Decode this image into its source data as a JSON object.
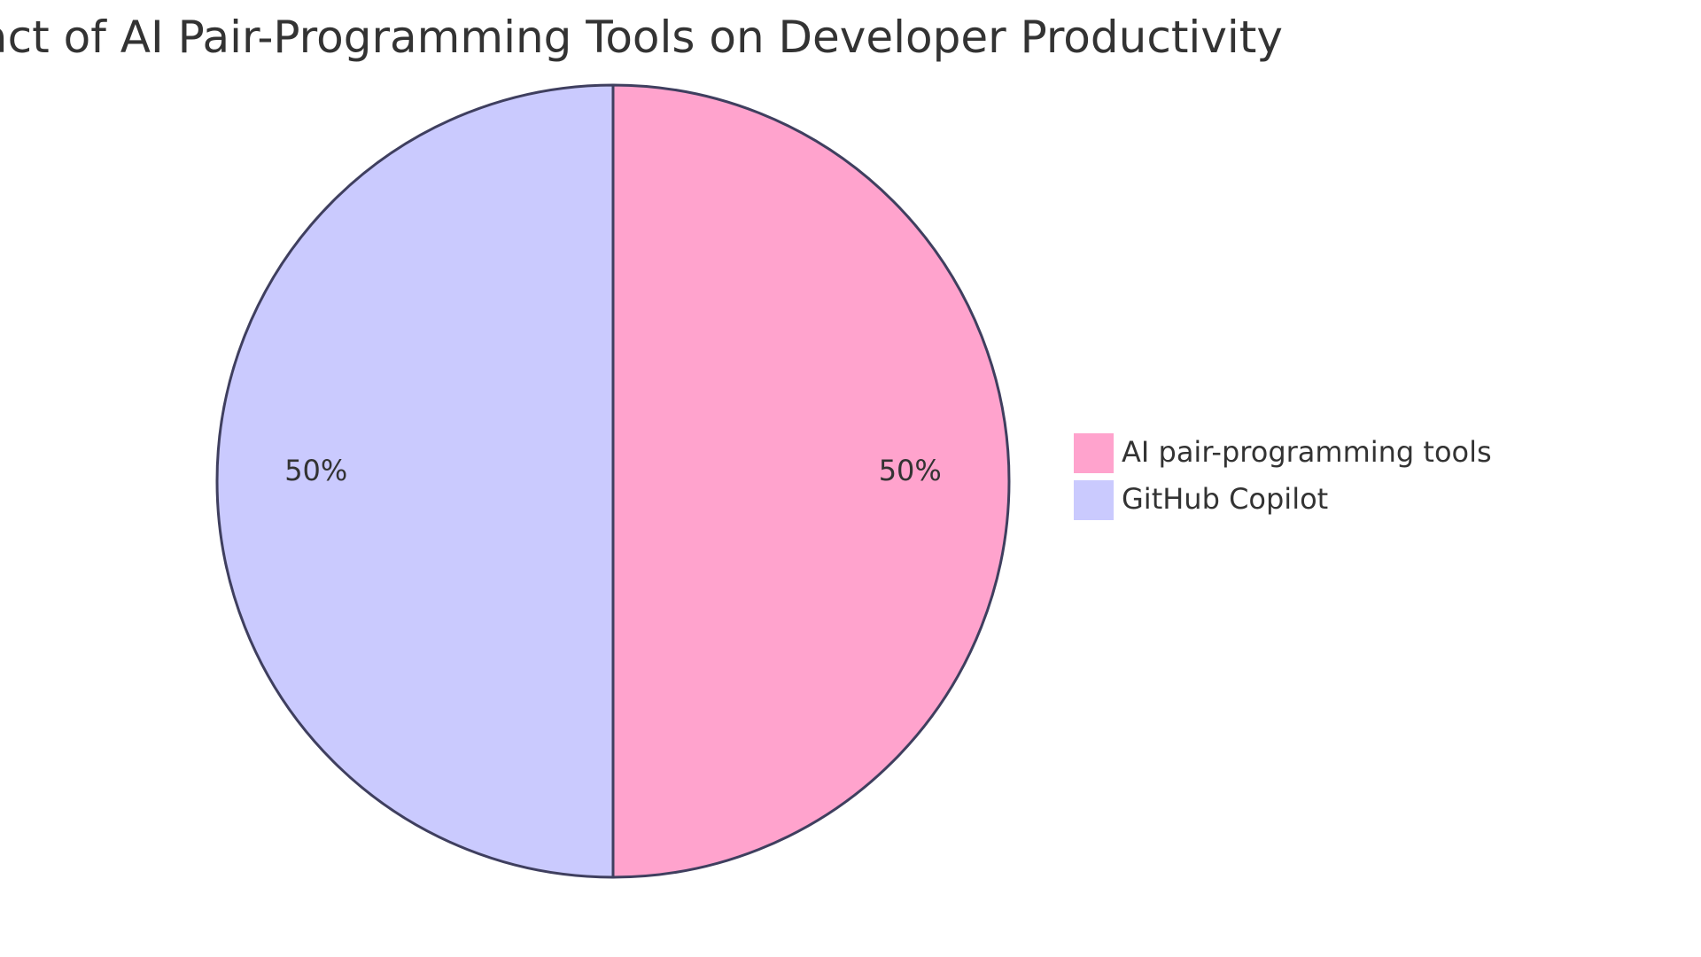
{
  "chart_data": {
    "type": "pie",
    "title": "Impact of AI Pair-Programming Tools on Developer Productivity",
    "slices": [
      {
        "label": "AI pair-programming tools",
        "value": 50,
        "value_label": "50%",
        "color": "#ffa3cd"
      },
      {
        "label": "GitHub Copilot",
        "value": 50,
        "value_label": "50%",
        "color": "#cacafe"
      }
    ],
    "stroke_color": "#3f3f5f",
    "text_color": "#333333",
    "legend_position": "right",
    "start_angle": "top, clockwise"
  }
}
